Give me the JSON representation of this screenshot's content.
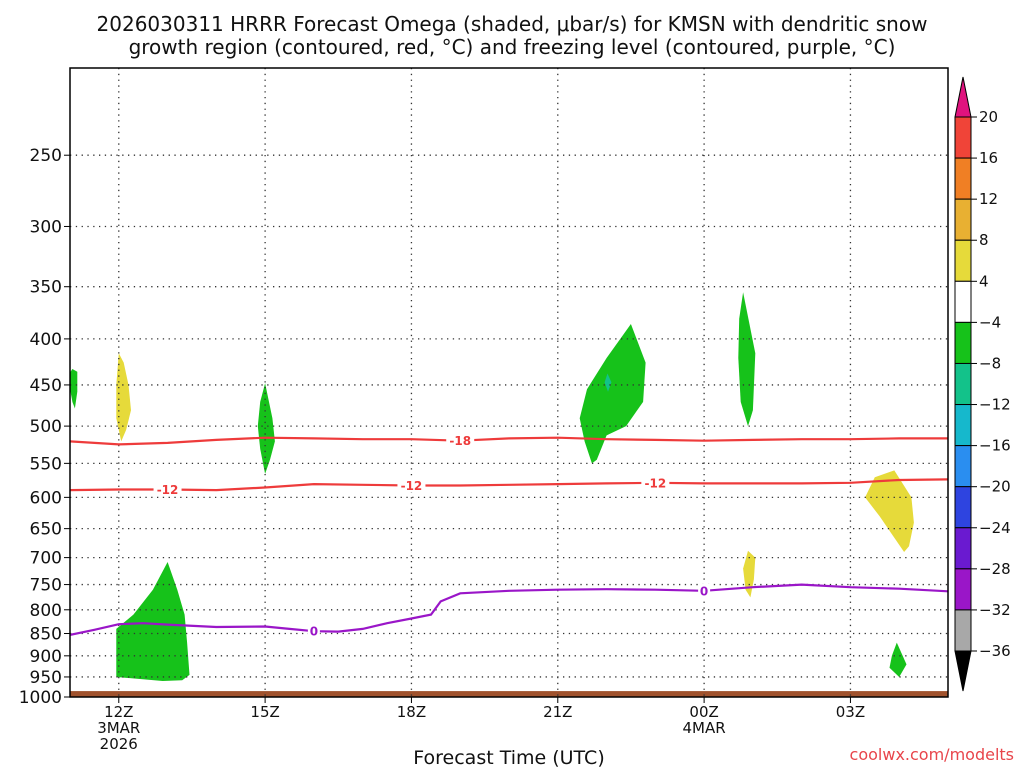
{
  "title": {
    "line1": "2026030311 HRRR Forecast Omega (shaded, μbar/s) for KMSN with dendritic snow",
    "line2": "growth region (contoured, red, °C) and freezing level (contoured, purple, °C)"
  },
  "credit": "coolwx.com/modelts",
  "chart_data": {
    "type": "contour",
    "title": "2026030311 HRRR Forecast Omega (shaded, μbar/s) for KMSN with dendritic snow growth region (contoured, red, °C) and freezing level (contoured, purple, °C)",
    "xlabel": "Forecast Time (UTC)",
    "ylabel": "",
    "x_unit": "forecast hour from 2026-03-03 11Z",
    "xlim": [
      0,
      18
    ],
    "ylim_hpa": [
      1000,
      200
    ],
    "y_scale": "log-pressure",
    "grid": true,
    "x_ticks": [
      {
        "hour": 1,
        "label": "12Z",
        "sub1": "3MAR",
        "sub2": "2026"
      },
      {
        "hour": 4,
        "label": "15Z",
        "sub1": "",
        "sub2": ""
      },
      {
        "hour": 7,
        "label": "18Z",
        "sub1": "",
        "sub2": ""
      },
      {
        "hour": 10,
        "label": "21Z",
        "sub1": "",
        "sub2": ""
      },
      {
        "hour": 13,
        "label": "00Z",
        "sub1": "4MAR",
        "sub2": ""
      },
      {
        "hour": 16,
        "label": "03Z",
        "sub1": "",
        "sub2": ""
      }
    ],
    "y_ticks": [
      250,
      300,
      350,
      400,
      450,
      500,
      550,
      600,
      650,
      700,
      750,
      800,
      850,
      900,
      950,
      1000
    ],
    "colorbar": {
      "levels": [
        20,
        16,
        12,
        8,
        4,
        -4,
        -8,
        -12,
        -16,
        -20,
        -24,
        -28,
        -32,
        -36
      ],
      "colors": [
        "#e0137e",
        "#f04438",
        "#f07f24",
        "#e8b032",
        "#e6da3a",
        "#ffffff",
        "#16c21a",
        "#13c28a",
        "#16b8cc",
        "#2a8ef0",
        "#2e44e0",
        "#6a1ad0",
        "#9a16c8",
        "#a8a8a8",
        "#000000"
      ]
    },
    "contour_lines": [
      {
        "value": -18,
        "color": "#ee3b3b",
        "label": "-18",
        "label_hours": [
          8
        ],
        "points": [
          [
            0,
            520
          ],
          [
            1,
            524
          ],
          [
            2,
            522
          ],
          [
            3,
            518
          ],
          [
            4,
            515
          ],
          [
            5,
            516
          ],
          [
            6,
            517
          ],
          [
            7,
            517
          ],
          [
            8,
            519
          ],
          [
            9,
            516
          ],
          [
            10,
            515
          ],
          [
            11,
            517
          ],
          [
            12,
            518
          ],
          [
            13,
            519
          ],
          [
            14,
            518
          ],
          [
            15,
            517
          ],
          [
            16,
            517
          ],
          [
            17,
            516
          ],
          [
            18,
            516
          ]
        ]
      },
      {
        "value": -12,
        "color": "#ee3b3b",
        "label": "-12",
        "label_hours": [
          2,
          7,
          12
        ],
        "points": [
          [
            0,
            589
          ],
          [
            1,
            588
          ],
          [
            2,
            588
          ],
          [
            3,
            589
          ],
          [
            4,
            585
          ],
          [
            5,
            580
          ],
          [
            6,
            581
          ],
          [
            7,
            582
          ],
          [
            8,
            582
          ],
          [
            9,
            581
          ],
          [
            10,
            580
          ],
          [
            11,
            579
          ],
          [
            12,
            578
          ],
          [
            13,
            579
          ],
          [
            14,
            579
          ],
          [
            15,
            579
          ],
          [
            16,
            578
          ],
          [
            17,
            574
          ],
          [
            18,
            573
          ]
        ]
      },
      {
        "value": 0,
        "color": "#9a16c8",
        "label": "0",
        "label_hours": [
          5,
          13
        ],
        "points": [
          [
            0,
            853
          ],
          [
            0.5,
            842
          ],
          [
            1,
            830
          ],
          [
            1.5,
            828
          ],
          [
            2,
            831
          ],
          [
            3,
            836
          ],
          [
            4,
            835
          ],
          [
            4.5,
            840
          ],
          [
            5,
            845
          ],
          [
            5.5,
            846
          ],
          [
            6,
            840
          ],
          [
            6.5,
            828
          ],
          [
            7,
            818
          ],
          [
            7.4,
            810
          ],
          [
            7.6,
            783
          ],
          [
            8,
            767
          ],
          [
            9,
            762
          ],
          [
            10,
            760
          ],
          [
            11,
            759
          ],
          [
            12,
            760
          ],
          [
            13,
            762
          ],
          [
            14,
            755
          ],
          [
            15,
            750
          ],
          [
            16,
            755
          ],
          [
            17,
            758
          ],
          [
            18,
            763
          ]
        ]
      }
    ],
    "shaded_regions": [
      {
        "value_range": [
          -8,
          -4
        ],
        "color": "#16c21a",
        "points": [
          [
            -0.05,
            440
          ],
          [
            0.05,
            470
          ],
          [
            0.1,
            478
          ],
          [
            0.15,
            458
          ],
          [
            0.15,
            435
          ],
          [
            0.05,
            432
          ]
        ]
      },
      {
        "value_range": [
          4,
          8
        ],
        "color": "#e6da3a",
        "points": [
          [
            1.0,
            415
          ],
          [
            1.1,
            425
          ],
          [
            1.2,
            450
          ],
          [
            1.25,
            480
          ],
          [
            1.15,
            505
          ],
          [
            1.05,
            520
          ],
          [
            0.95,
            490
          ],
          [
            0.95,
            450
          ]
        ]
      },
      {
        "value_range": [
          -8,
          -4
        ],
        "color": "#16c21a",
        "points": [
          [
            4.0,
            448
          ],
          [
            4.15,
            490
          ],
          [
            4.2,
            520
          ],
          [
            4.1,
            545
          ],
          [
            4.0,
            565
          ],
          [
            3.9,
            530
          ],
          [
            3.85,
            500
          ],
          [
            3.9,
            470
          ]
        ]
      },
      {
        "value_range": [
          -8,
          -4
        ],
        "color": "#16c21a",
        "points": [
          [
            2.0,
            708
          ],
          [
            2.2,
            760
          ],
          [
            2.35,
            810
          ],
          [
            2.4,
            870
          ],
          [
            2.45,
            945
          ],
          [
            2.3,
            958
          ],
          [
            1.9,
            960
          ],
          [
            0.95,
            950
          ],
          [
            0.95,
            840
          ],
          [
            1.3,
            810
          ],
          [
            1.7,
            760
          ]
        ]
      },
      {
        "value_range": [
          -8,
          -4
        ],
        "color": "#16c21a",
        "points": [
          [
            11.5,
            385
          ],
          [
            11.8,
            425
          ],
          [
            11.75,
            470
          ],
          [
            11.4,
            500
          ],
          [
            11.0,
            512
          ],
          [
            10.8,
            545
          ],
          [
            10.7,
            550
          ],
          [
            10.55,
            520
          ],
          [
            10.45,
            490
          ],
          [
            10.6,
            455
          ],
          [
            11.0,
            420
          ]
        ]
      },
      {
        "value_range": [
          -12,
          -8
        ],
        "color": "#13c28a",
        "points": [
          [
            11.02,
            437
          ],
          [
            11.1,
            447
          ],
          [
            11.03,
            458
          ],
          [
            10.96,
            447
          ]
        ]
      },
      {
        "value_range": [
          -8,
          -4
        ],
        "color": "#16c21a",
        "points": [
          [
            13.8,
            355
          ],
          [
            14.05,
            415
          ],
          [
            14.0,
            480
          ],
          [
            13.9,
            500
          ],
          [
            13.75,
            470
          ],
          [
            13.7,
            420
          ],
          [
            13.72,
            380
          ]
        ]
      },
      {
        "value_range": [
          4,
          8
        ],
        "color": "#e6da3a",
        "points": [
          [
            13.9,
            688
          ],
          [
            14.05,
            700
          ],
          [
            14.02,
            740
          ],
          [
            13.95,
            775
          ],
          [
            13.85,
            760
          ],
          [
            13.8,
            720
          ]
        ]
      },
      {
        "value_range": [
          4,
          8
        ],
        "color": "#e6da3a",
        "points": [
          [
            16.9,
            560
          ],
          [
            17.25,
            600
          ],
          [
            17.3,
            640
          ],
          [
            17.2,
            680
          ],
          [
            17.1,
            690
          ],
          [
            16.6,
            630
          ],
          [
            16.3,
            600
          ],
          [
            16.5,
            570
          ]
        ]
      },
      {
        "value_range": [
          -8,
          -4
        ],
        "color": "#16c21a",
        "points": [
          [
            16.95,
            870
          ],
          [
            17.05,
            895
          ],
          [
            17.15,
            920
          ],
          [
            17.0,
            950
          ],
          [
            16.8,
            928
          ],
          [
            16.85,
            900
          ]
        ]
      }
    ],
    "terrain": {
      "color": "#a0522d",
      "surface_hpa": 985
    }
  }
}
